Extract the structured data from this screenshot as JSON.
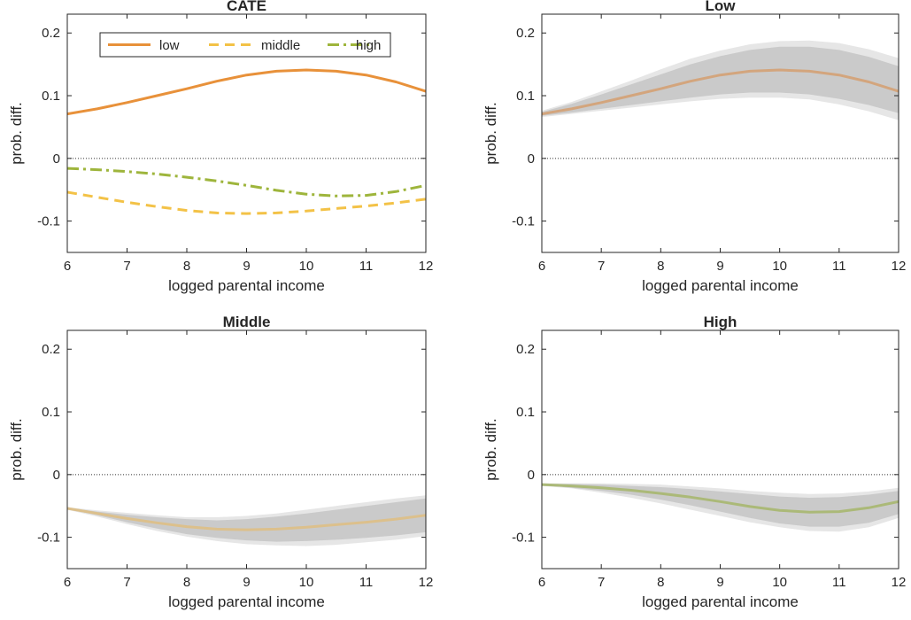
{
  "chart_data": [
    {
      "type": "line",
      "title": "CATE",
      "xlabel": "logged parental income",
      "ylabel": "prob. diff.",
      "xlim": [
        6,
        12
      ],
      "ylim": [
        -0.15,
        0.23
      ],
      "xticks": [
        "6",
        "7",
        "8",
        "9",
        "10",
        "11",
        "12"
      ],
      "yticks": [
        "-0.1",
        "0",
        "0.1",
        "0.2"
      ],
      "reference_line": 0,
      "legend": {
        "placement": "top",
        "entries": [
          "low",
          "middle",
          "high"
        ]
      },
      "x": [
        6,
        6.5,
        7,
        7.5,
        8,
        8.5,
        9,
        9.5,
        10,
        10.5,
        11,
        11.5,
        12
      ],
      "series": [
        {
          "name": "low",
          "style": "solid",
          "color": "#E8913A",
          "values": [
            0.071,
            0.079,
            0.089,
            0.1,
            0.111,
            0.123,
            0.133,
            0.139,
            0.141,
            0.139,
            0.133,
            0.122,
            0.107
          ]
        },
        {
          "name": "middle",
          "style": "dashed",
          "color": "#F3C247",
          "values": [
            -0.054,
            -0.062,
            -0.07,
            -0.077,
            -0.083,
            -0.087,
            -0.088,
            -0.087,
            -0.084,
            -0.08,
            -0.076,
            -0.071,
            -0.065
          ]
        },
        {
          "name": "high",
          "style": "dashdot",
          "color": "#9EB53C",
          "values": [
            -0.016,
            -0.018,
            -0.021,
            -0.025,
            -0.03,
            -0.036,
            -0.043,
            -0.051,
            -0.057,
            -0.06,
            -0.059,
            -0.053,
            -0.043
          ]
        }
      ]
    },
    {
      "type": "line",
      "title": "Low",
      "xlabel": "logged parental income",
      "ylabel": "prob. diff.",
      "xlim": [
        6,
        12
      ],
      "ylim": [
        -0.15,
        0.23
      ],
      "xticks": [
        "6",
        "7",
        "8",
        "9",
        "10",
        "11",
        "12"
      ],
      "yticks": [
        "-0.1",
        "0",
        "0.1",
        "0.2"
      ],
      "reference_line": 0,
      "line_color": "#D3A57D",
      "x": [
        6,
        6.5,
        7,
        7.5,
        8,
        8.5,
        9,
        9.5,
        10,
        10.5,
        11,
        11.5,
        12
      ],
      "estimate": [
        0.071,
        0.079,
        0.089,
        0.1,
        0.111,
        0.123,
        0.133,
        0.139,
        0.141,
        0.139,
        0.133,
        0.122,
        0.107
      ],
      "band_outer": {
        "upper": [
          0.076,
          0.09,
          0.107,
          0.124,
          0.142,
          0.159,
          0.172,
          0.182,
          0.187,
          0.188,
          0.184,
          0.174,
          0.16
        ],
        "lower": [
          0.066,
          0.071,
          0.076,
          0.081,
          0.086,
          0.091,
          0.095,
          0.097,
          0.097,
          0.094,
          0.086,
          0.075,
          0.061
        ]
      },
      "band_inner": {
        "upper": [
          0.074,
          0.087,
          0.102,
          0.118,
          0.134,
          0.15,
          0.163,
          0.173,
          0.178,
          0.178,
          0.173,
          0.162,
          0.147
        ],
        "lower": [
          0.068,
          0.073,
          0.079,
          0.085,
          0.091,
          0.097,
          0.102,
          0.105,
          0.105,
          0.102,
          0.095,
          0.085,
          0.072
        ]
      }
    },
    {
      "type": "line",
      "title": "Middle",
      "xlabel": "logged parental income",
      "ylabel": "prob. diff.",
      "xlim": [
        6,
        12
      ],
      "ylim": [
        -0.15,
        0.23
      ],
      "xticks": [
        "6",
        "7",
        "8",
        "9",
        "10",
        "11",
        "12"
      ],
      "yticks": [
        "-0.1",
        "0",
        "0.1",
        "0.2"
      ],
      "reference_line": 0,
      "line_color": "#DCC08C",
      "x": [
        6,
        6.5,
        7,
        7.5,
        8,
        8.5,
        9,
        9.5,
        10,
        10.5,
        11,
        11.5,
        12
      ],
      "estimate": [
        -0.054,
        -0.062,
        -0.07,
        -0.077,
        -0.083,
        -0.087,
        -0.088,
        -0.087,
        -0.084,
        -0.08,
        -0.076,
        -0.071,
        -0.065
      ],
      "band_outer": {
        "upper": [
          -0.052,
          -0.057,
          -0.061,
          -0.065,
          -0.068,
          -0.068,
          -0.066,
          -0.062,
          -0.056,
          -0.05,
          -0.044,
          -0.038,
          -0.033
        ],
        "lower": [
          -0.056,
          -0.067,
          -0.079,
          -0.09,
          -0.099,
          -0.106,
          -0.111,
          -0.113,
          -0.114,
          -0.112,
          -0.108,
          -0.104,
          -0.098
        ]
      },
      "band_inner": {
        "upper": [
          -0.053,
          -0.059,
          -0.064,
          -0.068,
          -0.071,
          -0.073,
          -0.071,
          -0.067,
          -0.062,
          -0.056,
          -0.05,
          -0.044,
          -0.038
        ],
        "lower": [
          -0.055,
          -0.065,
          -0.076,
          -0.086,
          -0.095,
          -0.101,
          -0.105,
          -0.107,
          -0.106,
          -0.104,
          -0.101,
          -0.097,
          -0.092
        ]
      }
    },
    {
      "type": "line",
      "title": "High",
      "xlabel": "logged parental income",
      "ylabel": "prob. diff.",
      "xlim": [
        6,
        12
      ],
      "ylim": [
        -0.15,
        0.23
      ],
      "xticks": [
        "6",
        "7",
        "8",
        "9",
        "10",
        "11",
        "12"
      ],
      "yticks": [
        "-0.1",
        "0",
        "0.1",
        "0.2"
      ],
      "reference_line": 0,
      "line_color": "#ABB978",
      "x": [
        6,
        6.5,
        7,
        7.5,
        8,
        8.5,
        9,
        9.5,
        10,
        10.5,
        11,
        11.5,
        12
      ],
      "estimate": [
        -0.016,
        -0.018,
        -0.021,
        -0.025,
        -0.03,
        -0.036,
        -0.043,
        -0.051,
        -0.057,
        -0.06,
        -0.059,
        -0.053,
        -0.043
      ],
      "band_outer": {
        "upper": [
          -0.014,
          -0.014,
          -0.014,
          -0.015,
          -0.016,
          -0.019,
          -0.022,
          -0.026,
          -0.029,
          -0.031,
          -0.03,
          -0.027,
          -0.021
        ],
        "lower": [
          -0.018,
          -0.022,
          -0.029,
          -0.037,
          -0.046,
          -0.056,
          -0.066,
          -0.076,
          -0.084,
          -0.09,
          -0.091,
          -0.084,
          -0.069
        ]
      },
      "band_inner": {
        "upper": [
          -0.015,
          -0.015,
          -0.016,
          -0.018,
          -0.02,
          -0.023,
          -0.027,
          -0.031,
          -0.035,
          -0.037,
          -0.036,
          -0.032,
          -0.026
        ],
        "lower": [
          -0.017,
          -0.021,
          -0.026,
          -0.032,
          -0.04,
          -0.049,
          -0.059,
          -0.069,
          -0.078,
          -0.083,
          -0.083,
          -0.077,
          -0.063
        ]
      }
    }
  ]
}
